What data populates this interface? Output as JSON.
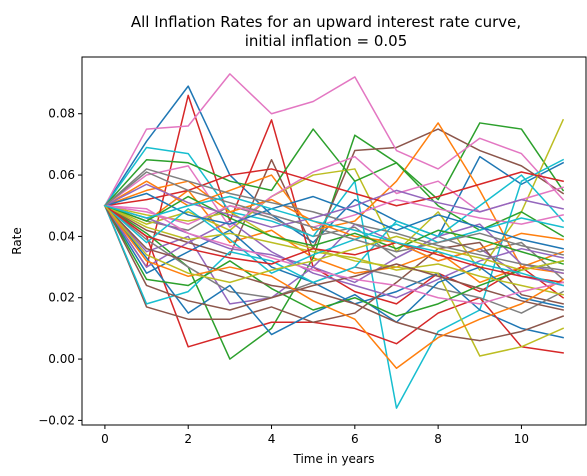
{
  "chart_data": {
    "type": "line",
    "title_line1": "All Inflation Rates for an upward interest rate curve,",
    "title_line2": "initial inflation = 0.05",
    "xlabel": "Time in years",
    "ylabel": "Rate",
    "xlim": [
      -0.55,
      11.55
    ],
    "ylim": [
      -0.0215,
      0.0985
    ],
    "xticks": [
      0,
      2,
      4,
      6,
      8,
      10
    ],
    "xtick_labels": [
      "0",
      "2",
      "4",
      "6",
      "8",
      "10"
    ],
    "yticks": [
      -0.02,
      0.0,
      0.02,
      0.04,
      0.06,
      0.08
    ],
    "ytick_labels": [
      "−0.02",
      "0.00",
      "0.02",
      "0.04",
      "0.06",
      "0.08"
    ],
    "grid": false,
    "legend": "none",
    "x": [
      0,
      1,
      2,
      3,
      4,
      5,
      6,
      7,
      8,
      9,
      10,
      11
    ],
    "colors": [
      "#1f77b4",
      "#ff7f0e",
      "#2ca02c",
      "#d62728",
      "#9467bd",
      "#8c564b",
      "#e377c2",
      "#7f7f7f",
      "#bcbd22",
      "#17becf"
    ],
    "series": [
      {
        "values": [
          0.05,
          0.071,
          0.089,
          0.06,
          0.047,
          0.038,
          0.052,
          0.045,
          0.04,
          0.066,
          0.057,
          0.064
        ]
      },
      {
        "values": [
          0.05,
          0.045,
          0.055,
          0.038,
          0.042,
          0.033,
          0.028,
          0.03,
          0.035,
          0.025,
          0.03,
          0.028
        ]
      },
      {
        "values": [
          0.05,
          0.041,
          0.03,
          0.0,
          0.01,
          0.033,
          0.073,
          0.064,
          0.052,
          0.077,
          0.075,
          0.055
        ]
      },
      {
        "values": [
          0.05,
          0.03,
          0.086,
          0.045,
          0.078,
          0.03,
          0.022,
          0.018,
          0.028,
          0.022,
          0.03,
          0.02
        ]
      },
      {
        "values": [
          0.05,
          0.035,
          0.04,
          0.018,
          0.02,
          0.03,
          0.044,
          0.038,
          0.032,
          0.036,
          0.027,
          0.024
        ]
      },
      {
        "values": [
          0.05,
          0.042,
          0.038,
          0.034,
          0.065,
          0.036,
          0.068,
          0.069,
          0.075,
          0.068,
          0.063,
          0.054
        ]
      },
      {
        "values": [
          0.05,
          0.075,
          0.076,
          0.093,
          0.08,
          0.084,
          0.092,
          0.068,
          0.062,
          0.072,
          0.067,
          0.052
        ]
      },
      {
        "values": [
          0.05,
          0.045,
          0.042,
          0.05,
          0.046,
          0.04,
          0.043,
          0.033,
          0.04,
          0.035,
          0.038,
          0.026
        ]
      },
      {
        "values": [
          0.05,
          0.044,
          0.048,
          0.042,
          0.053,
          0.06,
          0.062,
          0.035,
          0.048,
          0.029,
          0.048,
          0.078
        ]
      },
      {
        "values": [
          0.05,
          0.069,
          0.067,
          0.048,
          0.045,
          0.04,
          0.058,
          -0.016,
          0.009,
          0.016,
          0.058,
          0.065
        ]
      },
      {
        "values": [
          0.05,
          0.028,
          0.035,
          0.042,
          0.03,
          0.025,
          0.018,
          0.022,
          0.028,
          0.016,
          0.01,
          0.007
        ]
      },
      {
        "values": [
          0.05,
          0.058,
          0.05,
          0.055,
          0.06,
          0.042,
          0.045,
          0.058,
          0.077,
          0.055,
          0.03,
          0.035
        ]
      },
      {
        "values": [
          0.05,
          0.065,
          0.064,
          0.058,
          0.055,
          0.075,
          0.058,
          0.064,
          0.05,
          0.042,
          0.048,
          0.04
        ]
      },
      {
        "values": [
          0.05,
          0.04,
          0.004,
          0.008,
          0.012,
          0.012,
          0.01,
          0.005,
          0.015,
          0.02,
          0.004,
          0.002
        ]
      },
      {
        "values": [
          0.05,
          0.046,
          0.041,
          0.036,
          0.034,
          0.03,
          0.025,
          0.033,
          0.04,
          0.044,
          0.031,
          0.028
        ]
      },
      {
        "values": [
          0.05,
          0.017,
          0.013,
          0.013,
          0.017,
          0.012,
          0.015,
          0.025,
          0.036,
          0.038,
          0.021,
          0.018
        ]
      },
      {
        "values": [
          0.05,
          0.06,
          0.063,
          0.043,
          0.053,
          0.061,
          0.066,
          0.054,
          0.058,
          0.048,
          0.052,
          0.056
        ]
      },
      {
        "values": [
          0.05,
          0.039,
          0.03,
          0.022,
          0.02,
          0.025,
          0.03,
          0.027,
          0.023,
          0.02,
          0.015,
          0.022
        ]
      },
      {
        "values": [
          0.05,
          0.047,
          0.045,
          0.048,
          0.04,
          0.036,
          0.032,
          0.03,
          0.028,
          0.001,
          0.004,
          0.01
        ]
      },
      {
        "values": [
          0.05,
          0.018,
          0.022,
          0.035,
          0.032,
          0.025,
          0.03,
          0.045,
          0.04,
          0.05,
          0.06,
          0.045
        ]
      },
      {
        "values": [
          0.05,
          0.033,
          0.015,
          0.024,
          0.008,
          0.015,
          0.021,
          0.012,
          0.025,
          0.03,
          0.02,
          0.017
        ]
      },
      {
        "values": [
          0.05,
          0.055,
          0.058,
          0.048,
          0.052,
          0.045,
          0.04,
          0.038,
          0.032,
          0.036,
          0.041,
          0.039
        ]
      },
      {
        "values": [
          0.05,
          0.026,
          0.024,
          0.032,
          0.023,
          0.016,
          0.02,
          0.014,
          0.018,
          0.024,
          0.029,
          0.032
        ]
      },
      {
        "values": [
          0.05,
          0.052,
          0.055,
          0.06,
          0.062,
          0.058,
          0.054,
          0.05,
          0.053,
          0.057,
          0.061,
          0.058
        ]
      },
      {
        "values": [
          0.05,
          0.03,
          0.038,
          0.045,
          0.035,
          0.028,
          0.024,
          0.02,
          0.026,
          0.032,
          0.036,
          0.033
        ]
      },
      {
        "values": [
          0.05,
          0.036,
          0.032,
          0.028,
          0.024,
          0.022,
          0.018,
          0.012,
          0.008,
          0.006,
          0.009,
          0.014
        ]
      },
      {
        "values": [
          0.05,
          0.048,
          0.044,
          0.05,
          0.047,
          0.043,
          0.047,
          0.052,
          0.049,
          0.046,
          0.044,
          0.047
        ]
      },
      {
        "values": [
          0.05,
          0.062,
          0.058,
          0.054,
          0.051,
          0.048,
          0.044,
          0.041,
          0.037,
          0.034,
          0.031,
          0.029
        ]
      },
      {
        "values": [
          0.05,
          0.043,
          0.039,
          0.041,
          0.038,
          0.035,
          0.033,
          0.029,
          0.031,
          0.027,
          0.024,
          0.021
        ]
      },
      {
        "values": [
          0.05,
          0.038,
          0.049,
          0.039,
          0.028,
          0.034,
          0.039,
          0.044,
          0.038,
          0.042,
          0.046,
          0.043
        ]
      },
      {
        "values": [
          0.05,
          0.054,
          0.047,
          0.044,
          0.049,
          0.053,
          0.048,
          0.042,
          0.047,
          0.043,
          0.039,
          0.036
        ]
      },
      {
        "values": [
          0.05,
          0.032,
          0.027,
          0.03,
          0.027,
          0.019,
          0.013,
          -0.003,
          0.007,
          0.013,
          0.018,
          0.026
        ]
      },
      {
        "values": [
          0.05,
          0.045,
          0.053,
          0.046,
          0.04,
          0.037,
          0.041,
          0.036,
          0.042,
          0.039,
          0.035,
          0.031
        ]
      },
      {
        "values": [
          0.05,
          0.04,
          0.036,
          0.033,
          0.031,
          0.036,
          0.034,
          0.038,
          0.034,
          0.03,
          0.027,
          0.025
        ]
      },
      {
        "values": [
          0.05,
          0.057,
          0.051,
          0.047,
          0.043,
          0.046,
          0.05,
          0.055,
          0.051,
          0.048,
          0.052,
          0.049
        ]
      },
      {
        "values": [
          0.05,
          0.024,
          0.019,
          0.016,
          0.02,
          0.024,
          0.027,
          0.031,
          0.027,
          0.023,
          0.019,
          0.016
        ]
      },
      {
        "values": [
          0.05,
          0.049,
          0.041,
          0.037,
          0.033,
          0.029,
          0.026,
          0.024,
          0.02,
          0.018,
          0.022,
          0.025
        ]
      },
      {
        "values": [
          0.05,
          0.061,
          0.055,
          0.051,
          0.047,
          0.043,
          0.039,
          0.035,
          0.038,
          0.041,
          0.037,
          0.034
        ]
      },
      {
        "values": [
          0.05,
          0.034,
          0.028,
          0.025,
          0.029,
          0.032,
          0.036,
          0.04,
          0.036,
          0.033,
          0.029,
          0.032
        ]
      },
      {
        "values": [
          0.05,
          0.046,
          0.05,
          0.053,
          0.049,
          0.045,
          0.042,
          0.038,
          0.035,
          0.031,
          0.028,
          0.024
        ]
      }
    ]
  }
}
